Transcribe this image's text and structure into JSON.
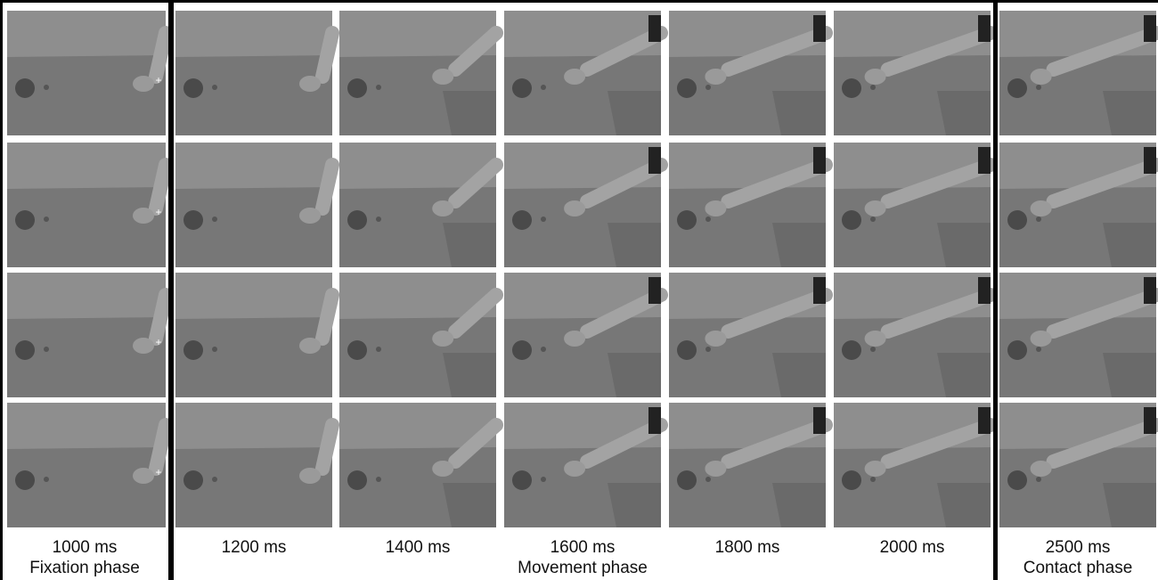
{
  "times": [
    "1000 ms",
    "1200 ms",
    "1400 ms",
    "1600 ms",
    "1800 ms",
    "2000 ms",
    "2500 ms"
  ],
  "phases": [
    "Fixation phase",
    "Movement phase",
    "Contact phase"
  ]
}
